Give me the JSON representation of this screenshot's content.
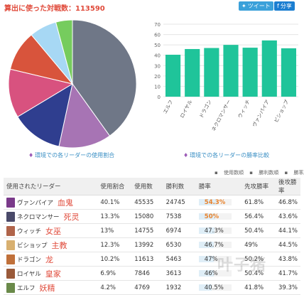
{
  "header": {
    "battle_count_label": "算出に使った対戦数：113590",
    "tweet_label": "ツイート",
    "share_label": "分享"
  },
  "captions": {
    "usage_ratio": "環境での各リーダーの使用割合",
    "win_rate": "環境での各リーダーの勝率比較"
  },
  "legend": [
    "使用数順",
    "勝利数順",
    "勝率順"
  ],
  "table": {
    "headers": [
      "使用されたリーダー",
      "使用割合",
      "使用数",
      "勝利数",
      "勝率",
      "先攻勝率",
      "後攻勝率"
    ],
    "rows": [
      {
        "leader": "ヴァンパイア",
        "cn": "血鬼",
        "ratio": "40.1%",
        "uses": "45535",
        "wins": "24745",
        "winrate": "54.3%",
        "first": "61.8%",
        "second": "46.8%",
        "highlight": true,
        "color": "#7a3a8a"
      },
      {
        "leader": "ネクロマンサー",
        "cn": "死灵",
        "ratio": "13.3%",
        "uses": "15080",
        "wins": "7538",
        "winrate": "50%",
        "first": "56.4%",
        "second": "43.6%",
        "highlight": true,
        "color": "#4a4a6a"
      },
      {
        "leader": "ウィッチ",
        "cn": "女巫",
        "ratio": "13%",
        "uses": "14755",
        "wins": "6974",
        "winrate": "47.3%",
        "first": "50.4%",
        "second": "44.1%",
        "highlight": false,
        "color": "#b0644a"
      },
      {
        "leader": "ビショップ",
        "cn": "主教",
        "ratio": "12.3%",
        "uses": "13992",
        "wins": "6530",
        "winrate": "46.7%",
        "first": "49%",
        "second": "44.5%",
        "highlight": false,
        "color": "#d8b070"
      },
      {
        "leader": "ドラゴン",
        "cn": "龙",
        "ratio": "10.2%",
        "uses": "11613",
        "wins": "5463",
        "winrate": "47%",
        "first": "50.2%",
        "second": "43.8%",
        "highlight": false,
        "color": "#c0703a"
      },
      {
        "leader": "ロイヤル",
        "cn": "皇家",
        "ratio": "6.9%",
        "uses": "7846",
        "wins": "3613",
        "winrate": "46%",
        "first": "50.4%",
        "second": "41.7%",
        "highlight": false,
        "color": "#9a5a3a"
      },
      {
        "leader": "エルフ",
        "cn": "妖精",
        "ratio": "4.2%",
        "uses": "4769",
        "wins": "1932",
        "winrate": "40.5%",
        "first": "41.8%",
        "second": "39.3%",
        "highlight": false,
        "color": "#6a8a4a"
      }
    ]
  },
  "watermark": "叶子猪",
  "chart_data": [
    {
      "type": "pie",
      "slices": [
        {
          "label": "ヴァンパイア",
          "value": 40.1,
          "color": "#6f7787"
        },
        {
          "label": "ネクロマンサー",
          "value": 13.3,
          "color": "#a774b4"
        },
        {
          "label": "ウィッチ",
          "value": 13.0,
          "color": "#2f3e8f"
        },
        {
          "label": "ビショップ",
          "value": 12.3,
          "color": "#d8527f"
        },
        {
          "label": "ドラゴン",
          "value": 10.2,
          "color": "#d8543c"
        },
        {
          "label": "ロイヤル",
          "value": 6.9,
          "color": "#a7d8f4"
        },
        {
          "label": "エルフ",
          "value": 4.2,
          "color": "#76cc5e"
        }
      ]
    },
    {
      "type": "bar",
      "categories": [
        "エルフ",
        "ロイヤル",
        "ドラゴン",
        "ネクロマンサー",
        "ウィッチ",
        "ヴァンパイア",
        "ビショップ"
      ],
      "values": [
        40.5,
        46,
        47,
        50,
        47.3,
        54.3,
        46.7
      ],
      "ylim": [
        0,
        70
      ],
      "yticks": [
        0,
        10,
        20,
        30,
        40,
        50,
        60,
        70
      ],
      "color": "#1fc49a",
      "grid": true
    }
  ]
}
